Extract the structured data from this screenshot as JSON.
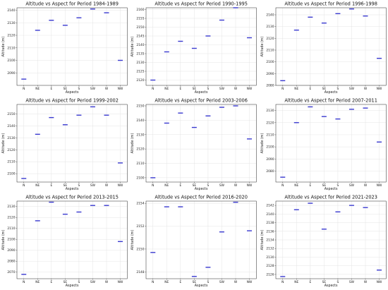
{
  "chart_data": [
    {
      "type": "scatter",
      "title": "Altitude vs Aspect for Period 1984-1989",
      "xlabel": "Aspects",
      "ylabel": "Altitude (m)",
      "categories": [
        "N",
        "NE",
        "E",
        "SE",
        "S",
        "SW",
        "W",
        "NW"
      ],
      "values": [
        2085,
        2124,
        2132,
        2128,
        2134,
        2141,
        2138,
        2100
      ],
      "ylim": [
        2080,
        2142
      ],
      "yticks": [
        2090,
        2100,
        2110,
        2120,
        2130,
        2140
      ],
      "grid": true
    },
    {
      "type": "scatter",
      "title": "Altitude vs Aspect for Period 1990-1995",
      "xlabel": "Aspects",
      "ylabel": "Altitude (m)",
      "categories": [
        "N",
        "NE",
        "E",
        "SE",
        "S",
        "SW",
        "W",
        "NW"
      ],
      "values": [
        2120,
        2136,
        2142,
        2138,
        2145,
        2154,
        2161,
        2144
      ],
      "ylim": [
        2117,
        2161
      ],
      "yticks": [
        2120,
        2125,
        2130,
        2135,
        2140,
        2145,
        2150,
        2155,
        2160
      ],
      "grid": true
    },
    {
      "type": "scatter",
      "title": "Altitude vs Aspect for Period 1996-1998",
      "xlabel": "Aspects",
      "ylabel": "Altitude (m)",
      "categories": [
        "N",
        "NE",
        "E",
        "SE",
        "S",
        "SW",
        "W",
        "NW"
      ],
      "values": [
        2084,
        2127,
        2138,
        2133,
        2141,
        2145,
        2139,
        2103
      ],
      "ylim": [
        2080,
        2146
      ],
      "yticks": [
        2080,
        2090,
        2100,
        2110,
        2120,
        2130,
        2140
      ],
      "grid": true
    },
    {
      "type": "scatter",
      "title": "Altitude vs Aspect for Period 1999-2002",
      "xlabel": "Aspects",
      "ylabel": "Altitude (m)",
      "categories": [
        "N",
        "NE",
        "E",
        "SE",
        "S",
        "SW",
        "W",
        "NW"
      ],
      "values": [
        2096,
        2133,
        2147,
        2141,
        2149,
        2156,
        2149,
        2109
      ],
      "ylim": [
        2093,
        2158
      ],
      "yticks": [
        2100,
        2110,
        2120,
        2130,
        2140,
        2150
      ],
      "grid": true
    },
    {
      "type": "scatter",
      "title": "Altitude vs Aspect for Period 2003-2006",
      "xlabel": "Aspects",
      "ylabel": "Altitude (m)",
      "categories": [
        "N",
        "NE",
        "E",
        "SE",
        "S",
        "SW",
        "W",
        "NW"
      ],
      "values": [
        2100,
        2138,
        2145,
        2135,
        2143,
        2149,
        2150,
        2127
      ],
      "ylim": [
        2097,
        2151
      ],
      "yticks": [
        2100,
        2110,
        2120,
        2130,
        2140,
        2150
      ],
      "grid": true
    },
    {
      "type": "scatter",
      "title": "Altitude vs Aspect for Period 2007-2011",
      "xlabel": "Aspects",
      "ylabel": "Altitude (m)",
      "categories": [
        "N",
        "NE",
        "E",
        "SE",
        "S",
        "SW",
        "W",
        "NW"
      ],
      "values": [
        2075,
        2120,
        2133,
        2125,
        2123,
        2131,
        2132,
        2104
      ],
      "ylim": [
        2071,
        2135
      ],
      "yticks": [
        2080,
        2090,
        2100,
        2110,
        2120,
        2130
      ],
      "grid": true
    },
    {
      "type": "scatter",
      "title": "Altitude vs Aspect for Period 2013-2015",
      "xlabel": "Aspects",
      "ylabel": "Altitude (m)",
      "categories": [
        "N",
        "NE",
        "E",
        "SE",
        "S",
        "SW",
        "W",
        "NW"
      ],
      "values": [
        2068,
        2117,
        2134,
        2123,
        2125,
        2131,
        2131,
        2098
      ],
      "ylim": [
        2064,
        2135
      ],
      "yticks": [
        2070,
        2080,
        2090,
        2100,
        2110,
        2120,
        2130
      ],
      "grid": true
    },
    {
      "type": "scatter",
      "title": "Altitude vs Aspect for Period 2016-2020",
      "xlabel": "Aspects",
      "ylabel": "Altitude (m)",
      "categories": [
        "N",
        "NE",
        "E",
        "SE",
        "S",
        "SW",
        "W",
        "NW"
      ],
      "values": [
        2149.7,
        2153.7,
        2153.7,
        2147.6,
        2148.4,
        2151.5,
        2154.1,
        2151.6
      ],
      "ylim": [
        2147.4,
        2154.2
      ],
      "yticks": [
        2148,
        2150,
        2152,
        2154
      ],
      "grid": true
    },
    {
      "type": "scatter",
      "title": "Altitude vs Aspect for Period 2021-2023",
      "xlabel": "Aspects",
      "ylabel": "Altitude (m)",
      "categories": [
        "N",
        "NE",
        "E",
        "SE",
        "S",
        "SW",
        "W",
        "NW"
      ],
      "values": [
        2125.5,
        2141,
        2142.5,
        2136.5,
        2140.5,
        2142,
        2141.5,
        2127
      ],
      "ylim": [
        2125,
        2143
      ],
      "yticks": [
        2126,
        2128,
        2130,
        2132,
        2134,
        2136,
        2138,
        2140,
        2142
      ],
      "grid": true
    }
  ]
}
